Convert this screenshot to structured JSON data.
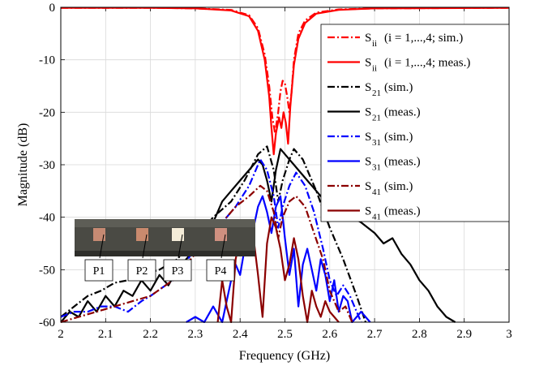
{
  "chart_data": {
    "type": "line",
    "xlabel": "Frequency (GHz)",
    "ylabel": "Magnitude (dB)",
    "xlim": [
      2,
      3
    ],
    "ylim": [
      -60,
      0
    ],
    "xticks": [
      2,
      2.1,
      2.2,
      2.3,
      2.4,
      2.5,
      2.6,
      2.7,
      2.8,
      2.9,
      3
    ],
    "xtick_labels": [
      "2",
      "2.1",
      "2.2",
      "2.3",
      "2.4",
      "2.5",
      "2.6",
      "2.7",
      "2.8",
      "2.9",
      "3"
    ],
    "yticks": [
      0,
      -10,
      -20,
      -30,
      -40,
      -50,
      -60
    ],
    "ytick_labels": [
      "0",
      "-10",
      "-20",
      "-30",
      "-40",
      "-50",
      "-60"
    ],
    "grid": true,
    "legend_position": "top-right",
    "series": [
      {
        "name": "Sii (i = 1,...,4; sim.)",
        "main": "S",
        "sub": "ii",
        "rest": "(i = 1,...,4; sim.)",
        "color": "#ff0000",
        "dash": "dashdot",
        "points": [
          [
            2,
            -0.1
          ],
          [
            2.2,
            -0.1
          ],
          [
            2.3,
            -0.2
          ],
          [
            2.38,
            -0.5
          ],
          [
            2.42,
            -1.5
          ],
          [
            2.44,
            -4
          ],
          [
            2.455,
            -9
          ],
          [
            2.465,
            -15
          ],
          [
            2.472,
            -21
          ],
          [
            2.478,
            -24
          ],
          [
            2.485,
            -20
          ],
          [
            2.49,
            -16
          ],
          [
            2.495,
            -14
          ],
          [
            2.5,
            -14.5
          ],
          [
            2.505,
            -17
          ],
          [
            2.51,
            -20
          ],
          [
            2.515,
            -16
          ],
          [
            2.52,
            -10
          ],
          [
            2.53,
            -5
          ],
          [
            2.545,
            -2.5
          ],
          [
            2.57,
            -1
          ],
          [
            2.62,
            -0.4
          ],
          [
            2.7,
            -0.2
          ],
          [
            3,
            -0.1
          ]
        ]
      },
      {
        "name": "Sii (i = 1,...,4; meas.)",
        "main": "S",
        "sub": "ii",
        "rest": "(i = 1,...,4; meas.)",
        "color": "#ff0000",
        "dash": "solid",
        "points": [
          [
            2,
            -0.1
          ],
          [
            2.2,
            -0.1
          ],
          [
            2.3,
            -0.2
          ],
          [
            2.38,
            -0.6
          ],
          [
            2.42,
            -1.7
          ],
          [
            2.44,
            -4.5
          ],
          [
            2.455,
            -10
          ],
          [
            2.465,
            -17
          ],
          [
            2.47,
            -23
          ],
          [
            2.475,
            -28
          ],
          [
            2.48,
            -24
          ],
          [
            2.487,
            -21
          ],
          [
            2.492,
            -23
          ],
          [
            2.497,
            -20
          ],
          [
            2.502,
            -22
          ],
          [
            2.507,
            -26
          ],
          [
            2.512,
            -19
          ],
          [
            2.52,
            -11
          ],
          [
            2.53,
            -6
          ],
          [
            2.545,
            -3
          ],
          [
            2.57,
            -1.2
          ],
          [
            2.62,
            -0.5
          ],
          [
            2.7,
            -0.2
          ],
          [
            3,
            -0.1
          ]
        ]
      },
      {
        "name": "S21 (sim.)",
        "main": "S",
        "sub": "21",
        "rest": "(sim.)",
        "color": "#000000",
        "dash": "dashdot",
        "points": [
          [
            2,
            -59
          ],
          [
            2.03,
            -57
          ],
          [
            2.06,
            -55
          ],
          [
            2.09,
            -54
          ],
          [
            2.12,
            -52.5
          ],
          [
            2.15,
            -52
          ],
          [
            2.18,
            -51
          ],
          [
            2.22,
            -50
          ],
          [
            2.26,
            -48
          ],
          [
            2.3,
            -44
          ],
          [
            2.34,
            -40
          ],
          [
            2.38,
            -37
          ],
          [
            2.41,
            -33
          ],
          [
            2.44,
            -28
          ],
          [
            2.46,
            -26.5
          ],
          [
            2.475,
            -31
          ],
          [
            2.485,
            -37
          ],
          [
            2.495,
            -33
          ],
          [
            2.51,
            -29
          ],
          [
            2.52,
            -27
          ],
          [
            2.54,
            -29
          ],
          [
            2.57,
            -35
          ],
          [
            2.6,
            -42
          ],
          [
            2.63,
            -48
          ],
          [
            2.66,
            -55
          ],
          [
            2.68,
            -60
          ]
        ]
      },
      {
        "name": "S21 (meas.)",
        "main": "S",
        "sub": "21",
        "rest": "(meas.)",
        "color": "#000000",
        "dash": "solid",
        "points": [
          [
            2,
            -60
          ],
          [
            2.02,
            -58
          ],
          [
            2.04,
            -59
          ],
          [
            2.06,
            -56
          ],
          [
            2.08,
            -58
          ],
          [
            2.1,
            -55
          ],
          [
            2.12,
            -57
          ],
          [
            2.14,
            -54
          ],
          [
            2.16,
            -55
          ],
          [
            2.18,
            -52
          ],
          [
            2.2,
            -54
          ],
          [
            2.22,
            -51
          ],
          [
            2.24,
            -53
          ],
          [
            2.26,
            -50
          ],
          [
            2.28,
            -48
          ],
          [
            2.3,
            -46
          ],
          [
            2.32,
            -43
          ],
          [
            2.34,
            -41
          ],
          [
            2.36,
            -37
          ],
          [
            2.38,
            -35
          ],
          [
            2.4,
            -33
          ],
          [
            2.42,
            -31
          ],
          [
            2.44,
            -29
          ],
          [
            2.45,
            -30
          ],
          [
            2.46,
            -33
          ],
          [
            2.47,
            -37
          ],
          [
            2.48,
            -31
          ],
          [
            2.49,
            -27
          ],
          [
            2.5,
            -28
          ],
          [
            2.51,
            -29
          ],
          [
            2.52,
            -30
          ],
          [
            2.53,
            -31
          ],
          [
            2.55,
            -33
          ],
          [
            2.57,
            -35
          ],
          [
            2.59,
            -37
          ],
          [
            2.61,
            -38
          ],
          [
            2.63,
            -39
          ],
          [
            2.65,
            -40
          ],
          [
            2.67,
            -41
          ],
          [
            2.7,
            -43
          ],
          [
            2.72,
            -45
          ],
          [
            2.74,
            -44
          ],
          [
            2.76,
            -47
          ],
          [
            2.78,
            -49
          ],
          [
            2.8,
            -52
          ],
          [
            2.82,
            -54
          ],
          [
            2.84,
            -57
          ],
          [
            2.86,
            -59
          ],
          [
            2.88,
            -60
          ]
        ]
      },
      {
        "name": "S31 (sim.)",
        "main": "S",
        "sub": "31",
        "rest": "(sim.)",
        "color": "#0000ff",
        "dash": "dashdot",
        "points": [
          [
            2,
            -59
          ],
          [
            2.03,
            -58
          ],
          [
            2.06,
            -58
          ],
          [
            2.09,
            -57
          ],
          [
            2.12,
            -57
          ],
          [
            2.15,
            -58
          ],
          [
            2.18,
            -56
          ],
          [
            2.2,
            -55
          ],
          [
            2.25,
            -52
          ],
          [
            2.3,
            -46
          ],
          [
            2.35,
            -42
          ],
          [
            2.39,
            -38
          ],
          [
            2.42,
            -34
          ],
          [
            2.445,
            -29
          ],
          [
            2.46,
            -31
          ],
          [
            2.475,
            -36
          ],
          [
            2.485,
            -42
          ],
          [
            2.495,
            -38
          ],
          [
            2.51,
            -34
          ],
          [
            2.525,
            -31.5
          ],
          [
            2.545,
            -34
          ],
          [
            2.565,
            -39
          ],
          [
            2.585,
            -46
          ],
          [
            2.6,
            -52
          ],
          [
            2.615,
            -55
          ],
          [
            2.63,
            -53
          ],
          [
            2.645,
            -55
          ],
          [
            2.66,
            -58
          ],
          [
            2.67,
            -60
          ]
        ]
      },
      {
        "name": "S31 (meas.)",
        "main": "S",
        "sub": "31",
        "rest": "(meas.)",
        "color": "#0000ff",
        "dash": "solid",
        "points": [
          [
            2.28,
            -60
          ],
          [
            2.3,
            -59
          ],
          [
            2.32,
            -60
          ],
          [
            2.34,
            -57
          ],
          [
            2.36,
            -60
          ],
          [
            2.37,
            -56
          ],
          [
            2.38,
            -52
          ],
          [
            2.39,
            -49
          ],
          [
            2.4,
            -51
          ],
          [
            2.41,
            -46
          ],
          [
            2.42,
            -44
          ],
          [
            2.43,
            -42
          ],
          [
            2.44,
            -38
          ],
          [
            2.45,
            -36
          ],
          [
            2.46,
            -39
          ],
          [
            2.47,
            -43
          ],
          [
            2.48,
            -38
          ],
          [
            2.49,
            -36
          ],
          [
            2.5,
            -44
          ],
          [
            2.51,
            -51
          ],
          [
            2.52,
            -46
          ],
          [
            2.53,
            -57
          ],
          [
            2.54,
            -49
          ],
          [
            2.55,
            -46
          ],
          [
            2.56,
            -50
          ],
          [
            2.57,
            -54
          ],
          [
            2.58,
            -48
          ],
          [
            2.59,
            -51
          ],
          [
            2.6,
            -56
          ],
          [
            2.61,
            -52
          ],
          [
            2.62,
            -58
          ],
          [
            2.63,
            -55
          ],
          [
            2.64,
            -56
          ],
          [
            2.65,
            -60
          ],
          [
            2.67,
            -58
          ],
          [
            2.69,
            -60
          ]
        ]
      },
      {
        "name": "S41 (sim.)",
        "main": "S",
        "sub": "41",
        "rest": "(sim.)",
        "color": "#8b0000",
        "dash": "dashdot",
        "points": [
          [
            2,
            -60
          ],
          [
            2.04,
            -59
          ],
          [
            2.08,
            -58
          ],
          [
            2.12,
            -57
          ],
          [
            2.16,
            -56
          ],
          [
            2.2,
            -55
          ],
          [
            2.25,
            -52
          ],
          [
            2.3,
            -47
          ],
          [
            2.35,
            -42
          ],
          [
            2.39,
            -38
          ],
          [
            2.42,
            -36
          ],
          [
            2.445,
            -34
          ],
          [
            2.46,
            -35
          ],
          [
            2.475,
            -39
          ],
          [
            2.485,
            -44
          ],
          [
            2.495,
            -40
          ],
          [
            2.51,
            -37
          ],
          [
            2.525,
            -36
          ],
          [
            2.545,
            -38
          ],
          [
            2.565,
            -43
          ],
          [
            2.585,
            -48
          ],
          [
            2.6,
            -54
          ],
          [
            2.62,
            -58
          ],
          [
            2.635,
            -57
          ],
          [
            2.65,
            -60
          ]
        ]
      },
      {
        "name": "S41 (meas.)",
        "main": "S",
        "sub": "41",
        "rest": "(meas.)",
        "color": "#8b0000",
        "dash": "solid",
        "points": [
          [
            2.35,
            -60
          ],
          [
            2.36,
            -52
          ],
          [
            2.37,
            -57
          ],
          [
            2.38,
            -60
          ],
          [
            2.39,
            -48
          ],
          [
            2.4,
            -44
          ],
          [
            2.41,
            -42
          ],
          [
            2.42,
            -41
          ],
          [
            2.43,
            -44
          ],
          [
            2.44,
            -51
          ],
          [
            2.45,
            -59
          ],
          [
            2.46,
            -45
          ],
          [
            2.47,
            -40
          ],
          [
            2.48,
            -42
          ],
          [
            2.49,
            -46
          ],
          [
            2.5,
            -52
          ],
          [
            2.51,
            -49
          ],
          [
            2.52,
            -44
          ],
          [
            2.53,
            -48
          ],
          [
            2.54,
            -55
          ],
          [
            2.55,
            -60
          ],
          [
            2.56,
            -54
          ],
          [
            2.57,
            -57
          ],
          [
            2.58,
            -59
          ],
          [
            2.59,
            -56
          ],
          [
            2.6,
            -58
          ],
          [
            2.62,
            -60
          ]
        ]
      }
    ],
    "inset_ports": [
      "P1",
      "P2",
      "P3",
      "P4"
    ]
  }
}
